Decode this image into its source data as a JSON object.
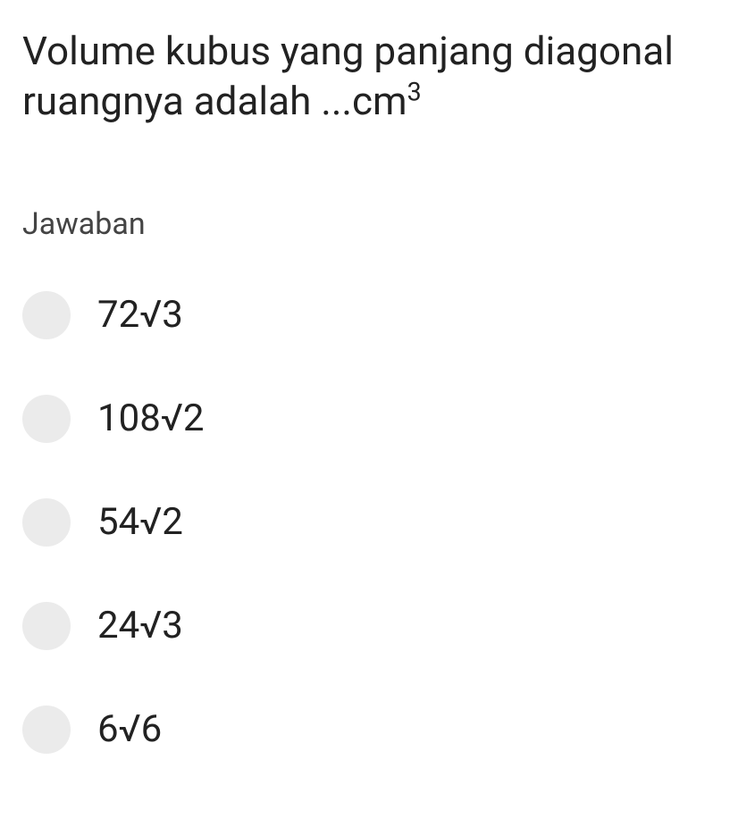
{
  "question": {
    "text": "Volume kubus yang panjang diagonal ruangnya adalah ...cm³",
    "text_color": "#222222",
    "font_size": 44
  },
  "answer_section": {
    "label": "Jawaban",
    "label_color": "#444444",
    "label_font_size": 34
  },
  "options": [
    {
      "label": "72√3"
    },
    {
      "label": "108√2"
    },
    {
      "label": "54√2"
    },
    {
      "label": "24√3"
    },
    {
      "label": "6√6"
    }
  ],
  "styling": {
    "background_color": "#ffffff",
    "radio_circle_color": "#ebebeb",
    "radio_circle_size": 54,
    "option_font_size": 42,
    "option_text_color": "#222222",
    "option_gap": 62
  }
}
